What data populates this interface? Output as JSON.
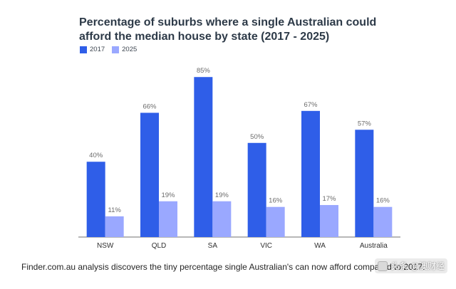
{
  "page": {
    "title_line_1": "Percentage of suburbs where a single Australian could",
    "title_line_2": "afford the median house by state (2017 - 2025)",
    "caption": "Finder.com.au analysis discovers the tiny percentage single Australian's can now afford compared to 2017.",
    "watermark_text": "头条 @澳财经"
  },
  "colors": {
    "series_2017": "#2f5ee8",
    "series_2025": "#9aa8ff",
    "axis": "#6f6f6f",
    "label_text": "#6b6b6b",
    "tick_text": "#2f2f2f"
  },
  "chart_data": {
    "type": "bar",
    "categories": [
      "NSW",
      "QLD",
      "SA",
      "VIC",
      "WA",
      "Australia"
    ],
    "series": [
      {
        "name": "2017",
        "values": [
          40,
          66,
          85,
          50,
          67,
          57
        ],
        "labels": [
          "40%",
          "66%",
          "85%",
          "50%",
          "67%",
          "57%"
        ]
      },
      {
        "name": "2025",
        "values": [
          11,
          19,
          19,
          16,
          17,
          16
        ],
        "labels": [
          "11%",
          "19%",
          "19%",
          "16%",
          "17%",
          "16%"
        ]
      }
    ],
    "title": "Percentage of suburbs where a single Australian could afford the median house by state (2017 - 2025)",
    "ylim": [
      0,
      90
    ],
    "legend_position": "top-left",
    "grid": false
  }
}
